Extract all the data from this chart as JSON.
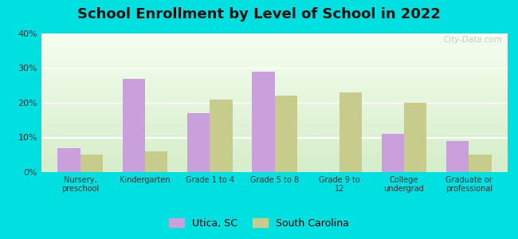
{
  "title": "School Enrollment by Level of School in 2022",
  "categories": [
    "Nursery,\npreschool",
    "Kindergarten",
    "Grade 1 to 4",
    "Grade 5 to 8",
    "Grade 9 to\n12",
    "College\nundergrad",
    "Graduate or\nprofessional"
  ],
  "utica_values": [
    7.0,
    27.0,
    17.0,
    29.0,
    0.0,
    11.0,
    9.0
  ],
  "sc_values": [
    5.0,
    6.0,
    21.0,
    22.0,
    23.0,
    20.0,
    5.0
  ],
  "utica_color": "#c9a0dc",
  "sc_color": "#c8cc8a",
  "bg_outer": "#00e0e0",
  "ylim": [
    0,
    40
  ],
  "yticks": [
    0,
    10,
    20,
    30,
    40
  ],
  "bar_width": 0.35,
  "title_fontsize": 13,
  "legend_labels": [
    "Utica, SC",
    "South Carolina"
  ],
  "watermark": "City-Data.com"
}
